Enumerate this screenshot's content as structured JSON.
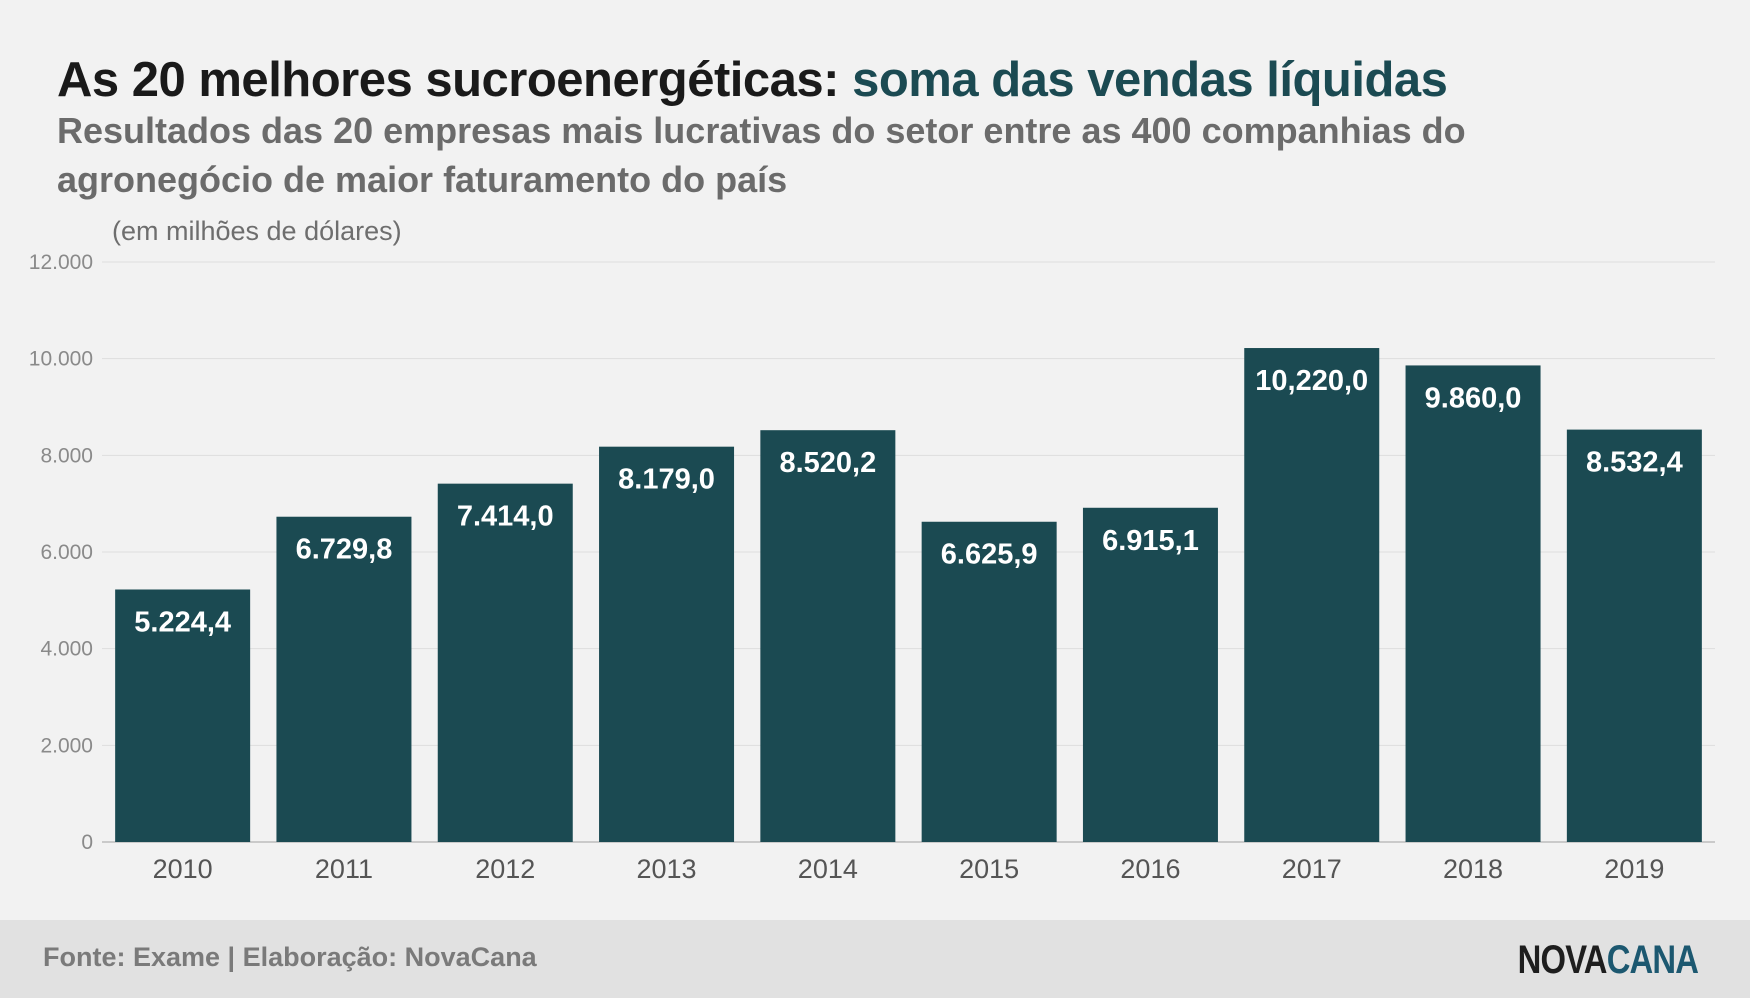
{
  "title": {
    "main": "As 20 melhores sucroenergéticas:",
    "accent": "soma das vendas líquidas"
  },
  "subtitle": "Resultados das 20 empresas mais lucrativas do setor entre as 400 companhias do agronegócio de maior faturamento do país",
  "unit_label": "(em milhões de dólares)",
  "footer": {
    "source": "Fonte: Exame | Elaboração: NovaCana",
    "logo_part1": "NOVA",
    "logo_part2": "CANA"
  },
  "colors": {
    "bar": "#1b4a52",
    "accent": "#1b4a52",
    "logo_accent": "#1c5870"
  },
  "chart_data": {
    "type": "bar",
    "categories": [
      "2010",
      "2011",
      "2012",
      "2013",
      "2014",
      "2015",
      "2016",
      "2017",
      "2018",
      "2019"
    ],
    "values": [
      5224.4,
      6729.8,
      7414.0,
      8179.0,
      8520.2,
      6625.9,
      6915.1,
      10220.0,
      9860.0,
      8532.4
    ],
    "value_labels": [
      "5.224,4",
      "6.729,8",
      "7.414,0",
      "8.179,0",
      "8.520,2",
      "6.625,9",
      "6.915,1",
      "10,220,0",
      "9.860,0",
      "8.532,4"
    ],
    "y_ticks": [
      0,
      2000,
      4000,
      6000,
      8000,
      10000,
      12000
    ],
    "y_tick_labels": [
      "0",
      "2.000",
      "4.000",
      "6.000",
      "8.000",
      "10.000",
      "12.000"
    ],
    "ylim": [
      0,
      12000
    ],
    "grid": true,
    "legend": "none"
  }
}
